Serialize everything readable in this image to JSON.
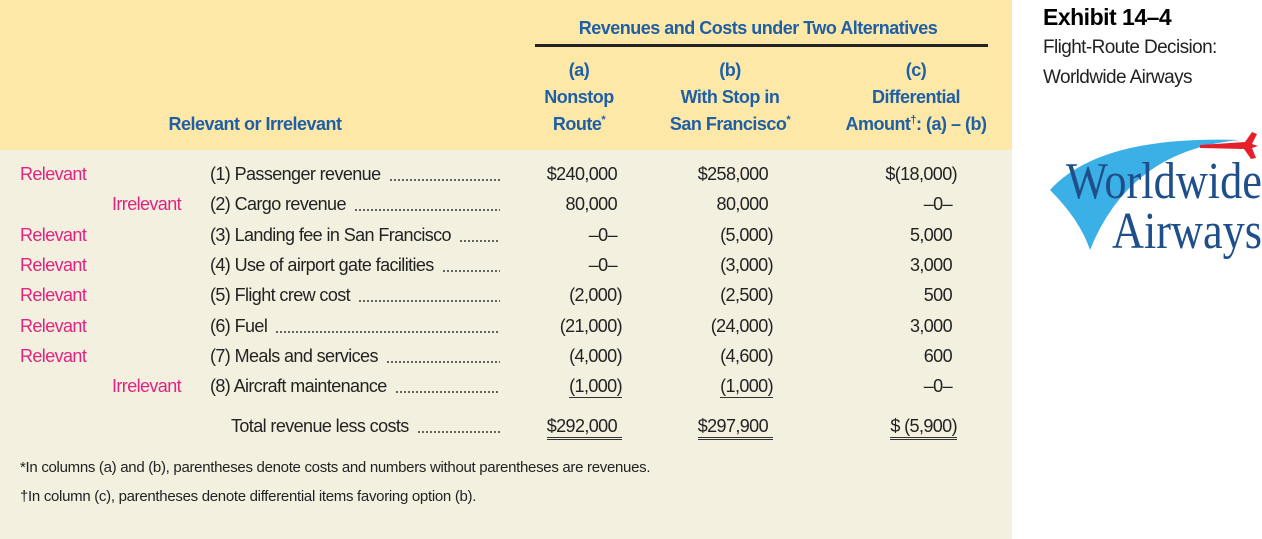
{
  "exhibit": {
    "title": "Exhibit 14–4",
    "subtitle_lines": [
      "Flight-Route Decision:",
      "Worldwide Airways"
    ]
  },
  "logo": {
    "line1": "Worldwide",
    "line2": "Airways"
  },
  "header": {
    "group": "Revenues and Costs under Two Alternatives",
    "relevance": "Relevant or Irrelevant",
    "columns": [
      {
        "letter": "(a)",
        "lines": [
          "Nonstop",
          "Route"
        ],
        "mark": "*"
      },
      {
        "letter": "(b)",
        "lines": [
          "With Stop in",
          "San Francisco"
        ],
        "mark": "*"
      },
      {
        "letter": "(c)",
        "lines": [
          "Differential",
          "Amount"
        ],
        "mark": "†",
        "suffix": ": (a) – (b)"
      }
    ]
  },
  "rows": [
    {
      "relevance": "Relevant",
      "item": "(1) Passenger revenue",
      "a": "$240,000",
      "b": "$258,000",
      "c": "$(18,000)"
    },
    {
      "relevance": "Irrelevant",
      "item": "(2) Cargo revenue",
      "a": "80,000",
      "b": "80,000",
      "c": "–0–"
    },
    {
      "relevance": "Relevant",
      "item": "(3) Landing fee in San Francisco",
      "a": "–0–",
      "b": "(5,000)",
      "c": "5,000"
    },
    {
      "relevance": "Relevant",
      "item": "(4) Use of airport gate facilities",
      "a": "–0–",
      "b": "(3,000)",
      "c": "3,000"
    },
    {
      "relevance": "Relevant",
      "item": "(5) Flight crew cost",
      "a": "(2,000)",
      "b": "(2,500)",
      "c": "500"
    },
    {
      "relevance": "Relevant",
      "item": "(6) Fuel",
      "a": "(21,000)",
      "b": "(24,000)",
      "c": "3,000"
    },
    {
      "relevance": "Relevant",
      "item": "(7) Meals and services",
      "a": "(4,000)",
      "b": "(4,600)",
      "c": "600"
    },
    {
      "relevance": "Irrelevant",
      "item": "(8) Aircraft maintenance",
      "a": "(1,000)",
      "b": "(1,000)",
      "c": "–0–"
    }
  ],
  "total": {
    "item": "Total revenue less costs",
    "a": "$292,000",
    "b": "$297,900",
    "c": "$ (5,900)"
  },
  "footnotes": [
    "*In columns (a) and (b), parentheses denote costs and numbers without parentheses are revenues.",
    "†In column (c), parentheses denote differential items favoring option (b)."
  ]
}
